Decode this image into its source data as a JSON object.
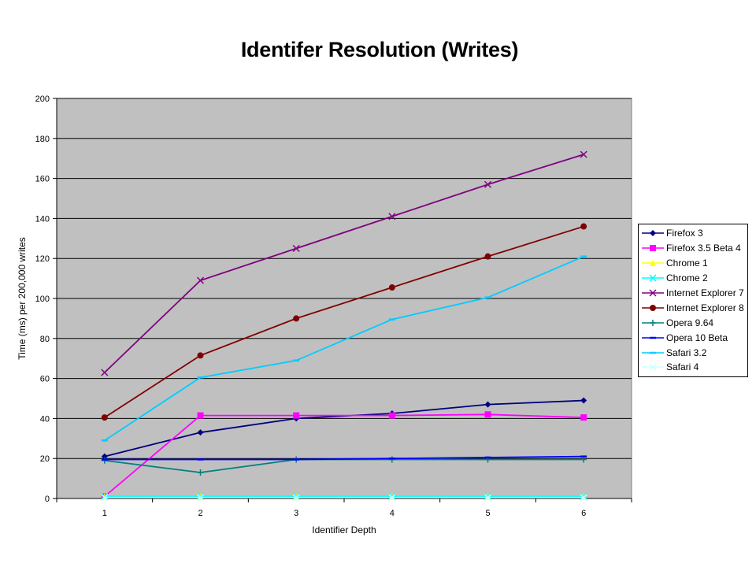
{
  "chart_data": {
    "type": "line",
    "title": "Identifer Resolution (Writes)",
    "xlabel": "Identifier Depth",
    "ylabel": "Time (ms) per 200,000 writes",
    "categories": [
      "1",
      "2",
      "3",
      "4",
      "5",
      "6"
    ],
    "ylim": [
      0,
      200
    ],
    "yticks": [
      "0",
      "20",
      "40",
      "60",
      "80",
      "100",
      "120",
      "140",
      "160",
      "180",
      "200"
    ],
    "grid": true,
    "legend_position": "right",
    "plot_background": "#c0c0c0",
    "series": [
      {
        "name": "Firefox 3",
        "color": "#000080",
        "marker": "diamond",
        "values": [
          21,
          33,
          40,
          42.5,
          47,
          49
        ]
      },
      {
        "name": "Firefox 3.5 Beta 4",
        "color": "#ff00ff",
        "marker": "square",
        "values": [
          1,
          41.5,
          41.5,
          41.5,
          42,
          40.5
        ]
      },
      {
        "name": "Chrome 1",
        "color": "#ffff00",
        "marker": "triangle",
        "values": [
          1,
          1,
          1,
          1,
          1,
          1
        ]
      },
      {
        "name": "Chrome 2",
        "color": "#00ffff",
        "marker": "x",
        "values": [
          1,
          1,
          1,
          1,
          1,
          1
        ]
      },
      {
        "name": "Internet Explorer 7",
        "color": "#800080",
        "marker": "x",
        "values": [
          63,
          109,
          125,
          141,
          157,
          172
        ]
      },
      {
        "name": "Internet Explorer 8",
        "color": "#800000",
        "marker": "circle",
        "values": [
          40.5,
          71.5,
          90,
          105.5,
          121,
          136
        ]
      },
      {
        "name": "Opera 9.64",
        "color": "#008080",
        "marker": "plus",
        "values": [
          19,
          13,
          19.5,
          19.5,
          19.5,
          19.5
        ]
      },
      {
        "name": "Opera 10 Beta",
        "color": "#0000ff",
        "marker": "dash",
        "values": [
          19.5,
          19.5,
          19.5,
          20,
          20.5,
          21
        ]
      },
      {
        "name": "Safari 3.2",
        "color": "#00ccff",
        "marker": "dash",
        "values": [
          29,
          60.5,
          69,
          89.5,
          100.5,
          121
        ]
      },
      {
        "name": "Safari 4",
        "color": "#ccffff",
        "marker": "x",
        "values": [
          0.5,
          0.5,
          0.5,
          0.5,
          0.5,
          0.5
        ]
      }
    ]
  }
}
